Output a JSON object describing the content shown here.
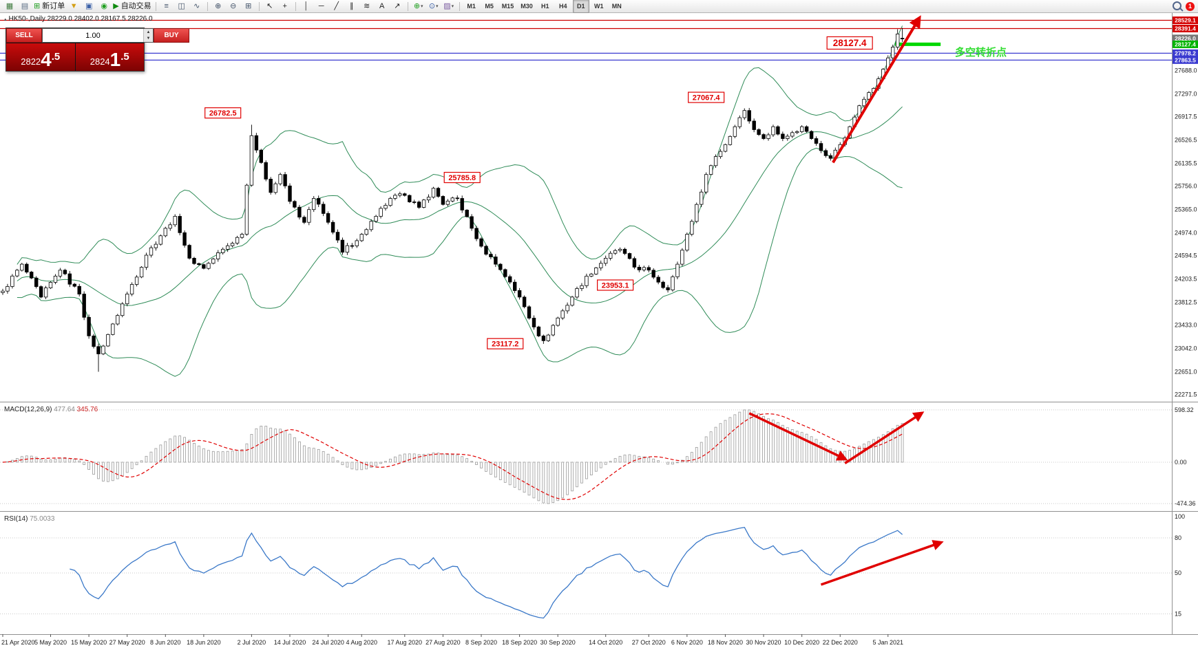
{
  "toolbar": {
    "items": [
      {
        "kind": "icon",
        "name": "new-chart-icon",
        "glyph": "▦",
        "color": "#3d7a3d"
      },
      {
        "kind": "icon",
        "name": "profiles-icon",
        "glyph": "▤",
        "color": "#5a6d84"
      },
      {
        "kind": "button",
        "name": "new-order-button",
        "glyph": "⊞",
        "color": "#1f9e1f",
        "label": "新订单"
      },
      {
        "kind": "icon",
        "name": "indicators-funnel-icon",
        "glyph": "▼",
        "color": "#d4a017"
      },
      {
        "kind": "icon",
        "name": "data-window-icon",
        "glyph": "▣",
        "color": "#3d62a8"
      },
      {
        "kind": "icon",
        "name": "strategy-tester-icon",
        "glyph": "◉",
        "color": "#1f9e1f"
      },
      {
        "kind": "button",
        "name": "autotrading-button",
        "glyph": "▶",
        "color": "#0e8a0e",
        "label": "自动交易"
      },
      {
        "kind": "sep"
      },
      {
        "kind": "icon",
        "name": "bar-chart-icon",
        "glyph": "≡",
        "color": "#44546a"
      },
      {
        "kind": "icon",
        "name": "candlestick-chart-icon",
        "glyph": "◫",
        "color": "#44546a"
      },
      {
        "kind": "icon",
        "name": "line-chart-icon",
        "glyph": "∿",
        "color": "#44546a"
      },
      {
        "kind": "sep"
      },
      {
        "kind": "icon",
        "name": "zoom-in-icon",
        "glyph": "⊕",
        "color": "#44546a"
      },
      {
        "kind": "icon",
        "name": "zoom-out-icon",
        "glyph": "⊖",
        "color": "#44546a"
      },
      {
        "kind": "icon",
        "name": "tile-windows-icon",
        "glyph": "⊞",
        "color": "#44546a"
      },
      {
        "kind": "sep"
      },
      {
        "kind": "icon",
        "name": "cursor-icon",
        "glyph": "↖",
        "color": "#222222"
      },
      {
        "kind": "icon",
        "name": "crosshair-icon",
        "glyph": "+",
        "color": "#222222"
      },
      {
        "kind": "sep"
      },
      {
        "kind": "icon",
        "name": "vertical-line-icon",
        "glyph": "│",
        "color": "#222222"
      },
      {
        "kind": "icon",
        "name": "horizontal-line-icon",
        "glyph": "─",
        "color": "#222222"
      },
      {
        "kind": "icon",
        "name": "trendline-icon",
        "glyph": "╱",
        "color": "#222222"
      },
      {
        "kind": "icon",
        "name": "equidistant-channel-icon",
        "glyph": "∥",
        "color": "#222222"
      },
      {
        "kind": "icon",
        "name": "fibonacci-icon",
        "glyph": "≋",
        "color": "#222222"
      },
      {
        "kind": "icon",
        "name": "text-label-icon",
        "glyph": "A",
        "color": "#222222"
      },
      {
        "kind": "icon",
        "name": "arrows-icon",
        "glyph": "↗",
        "color": "#222222"
      },
      {
        "kind": "sep"
      },
      {
        "kind": "icon",
        "name": "add-indicator-icon",
        "glyph": "⊕",
        "color": "#1f9e1f",
        "dropdown": true
      },
      {
        "kind": "icon",
        "name": "period-icon",
        "glyph": "⊙",
        "color": "#3d62a8",
        "dropdown": true
      },
      {
        "kind": "icon",
        "name": "template-icon",
        "glyph": "▨",
        "color": "#7a5aa0",
        "dropdown": true
      },
      {
        "kind": "sep"
      },
      {
        "kind": "tf",
        "name": "timeframe-m1-button",
        "label": "M1"
      },
      {
        "kind": "tf",
        "name": "timeframe-m5-button",
        "label": "M5"
      },
      {
        "kind": "tf",
        "name": "timeframe-m15-button",
        "label": "M15"
      },
      {
        "kind": "tf",
        "name": "timeframe-m30-button",
        "label": "M30"
      },
      {
        "kind": "tf",
        "name": "timeframe-h1-button",
        "label": "H1"
      },
      {
        "kind": "tf",
        "name": "timeframe-h4-button",
        "label": "H4"
      },
      {
        "kind": "tf",
        "name": "timeframe-d1-button",
        "label": "D1",
        "active": true
      },
      {
        "kind": "tf",
        "name": "timeframe-w1-button",
        "label": "W1"
      },
      {
        "kind": "tf",
        "name": "timeframe-mn-button",
        "label": "MN"
      }
    ],
    "notification_count": "1"
  },
  "header": {
    "marker": "▴",
    "text": "HK50-,Daily 28229.0 28402.0 28167.5 28226.0"
  },
  "trade_panel": {
    "sell_label": "SELL",
    "buy_label": "BUY",
    "volume": "1.00",
    "sell_price_main": "2822",
    "sell_price_big": "4",
    "sell_price_frac": ".5",
    "buy_price_main": "2824",
    "buy_price_big": "1",
    "buy_price_frac": ".5"
  },
  "chart_data": {
    "type": "candlestick",
    "symbol": "HK50-,Daily",
    "last_ohlc": {
      "open": 28229.0,
      "high": 28402.0,
      "low": 28167.5,
      "close": 28226.0
    },
    "days_total": 189,
    "price_min": 22150,
    "price_max": 28650,
    "close_anchors": [
      [
        0,
        24000
      ],
      [
        4,
        24450
      ],
      [
        8,
        23900
      ],
      [
        12,
        24350
      ],
      [
        16,
        23950
      ],
      [
        18,
        23250
      ],
      [
        20,
        22950
      ],
      [
        23,
        23450
      ],
      [
        26,
        23950
      ],
      [
        30,
        24600
      ],
      [
        34,
        25050
      ],
      [
        36,
        25250
      ],
      [
        39,
        24550
      ],
      [
        42,
        24380
      ],
      [
        46,
        24700
      ],
      [
        50,
        24950
      ],
      [
        52,
        26600
      ],
      [
        54,
        26150
      ],
      [
        56,
        25650
      ],
      [
        58,
        25950
      ],
      [
        60,
        25500
      ],
      [
        63,
        25150
      ],
      [
        65,
        25550
      ],
      [
        68,
        25150
      ],
      [
        71,
        24650
      ],
      [
        75,
        24950
      ],
      [
        78,
        25250
      ],
      [
        81,
        25550
      ],
      [
        84,
        25600
      ],
      [
        87,
        25400
      ],
      [
        90,
        25720
      ],
      [
        92,
        25450
      ],
      [
        95,
        25550
      ],
      [
        98,
        25050
      ],
      [
        100,
        24750
      ],
      [
        103,
        24450
      ],
      [
        106,
        24150
      ],
      [
        108,
        23900
      ],
      [
        111,
        23400
      ],
      [
        113,
        23170
      ],
      [
        116,
        23550
      ],
      [
        119,
        23900
      ],
      [
        122,
        24250
      ],
      [
        126,
        24550
      ],
      [
        129,
        24700
      ],
      [
        132,
        24400
      ],
      [
        135,
        24350
      ],
      [
        137,
        24150
      ],
      [
        139,
        24020
      ],
      [
        141,
        24450
      ],
      [
        143,
        24950
      ],
      [
        145,
        25450
      ],
      [
        147,
        25950
      ],
      [
        149,
        26250
      ],
      [
        151,
        26450
      ],
      [
        153,
        26750
      ],
      [
        155,
        27020
      ],
      [
        157,
        26700
      ],
      [
        159,
        26550
      ],
      [
        161,
        26750
      ],
      [
        163,
        26550
      ],
      [
        165,
        26650
      ],
      [
        167,
        26750
      ],
      [
        169,
        26550
      ],
      [
        171,
        26350
      ],
      [
        173,
        26220
      ],
      [
        175,
        26450
      ],
      [
        177,
        26750
      ],
      [
        179,
        27100
      ],
      [
        181,
        27320
      ],
      [
        183,
        27550
      ],
      [
        185,
        27900
      ],
      [
        186,
        28080
      ],
      [
        187,
        28300
      ],
      [
        188,
        28226
      ]
    ],
    "overrides": {
      "20": {
        "low": 22651.0
      },
      "52": {
        "high": 26782.5
      },
      "113": {
        "low": 23117.2
      },
      "187": {
        "high": 28380.0
      },
      "188": {
        "open": 28229.0,
        "high": 28402.0,
        "low": 28167.5,
        "close": 28226.0
      }
    },
    "bollinger_period": 20,
    "band_color": "#2e8b57",
    "hlines": [
      {
        "price": 28529.1,
        "color": "#cc0000"
      },
      {
        "price": 28391.4,
        "color": "#cc0000"
      },
      {
        "price": 27978.2,
        "color": "#3a3ad0"
      },
      {
        "price": 27863.5,
        "color": "#3a3ad0"
      }
    ],
    "green_level": {
      "price": 28127.4,
      "day_from": 186.5,
      "day_to": 196,
      "color": "#00d800"
    },
    "annotations": [
      {
        "text": "26782.5",
        "day": 46,
        "price": 26980
      },
      {
        "text": "25785.8",
        "day": 96,
        "price": 25900
      },
      {
        "text": "23117.2",
        "day": 105,
        "price": 23120
      },
      {
        "text": "23953.1",
        "day": 128,
        "price": 24100
      },
      {
        "text": "27067.4",
        "day": 147,
        "price": 27240
      },
      {
        "text": "28127.4",
        "day": 177,
        "price": 28150,
        "big": true
      }
    ],
    "trend_label": {
      "text": "多空转折点",
      "color": "#33dd33",
      "fx": 0.815,
      "price": 27940
    },
    "main_arrow": {
      "from_day": 173.5,
      "from_price": 26150,
      "to_day": 191.5,
      "to_price": 28560
    },
    "macd": {
      "label": "MACD(12,26,9)",
      "value_main": "477.64",
      "value_signal": "345.76",
      "axis_max_label": "598.32",
      "axis_zero_label": "0.00",
      "axis_min_label": "-474.36",
      "hist_color": "#9a9a9a",
      "signal_color": "#e00000",
      "arrows": [
        {
          "from_day": 156,
          "from_fy": 0.1,
          "to_day": 176,
          "to_fy": 0.52
        },
        {
          "from_day": 176,
          "from_fy": 0.56,
          "to_day": 192,
          "to_fy": 0.1
        }
      ]
    },
    "rsi": {
      "label": "RSI(14)",
      "value": "75.0033",
      "line_color": "#3a78c8",
      "axis_top_label": "100",
      "levels": [
        80,
        50,
        15
      ],
      "arrow": {
        "from_day": 171,
        "from_value": 40,
        "to_day": 196,
        "to_value": 76
      }
    },
    "price_axis": {
      "badges": [
        {
          "label": "28529.1",
          "price": 28529.1,
          "bg": "#d40000"
        },
        {
          "label": "28391.4",
          "price": 28391.4,
          "bg": "#d40000"
        },
        {
          "label": "28226.0",
          "price": 28226.0,
          "bg": "#777777"
        },
        {
          "label": "28127.4",
          "price": 28127.4,
          "bg": "#00b300"
        },
        {
          "label": "27978.2",
          "price": 27978.2,
          "bg": "#3a3ad0"
        },
        {
          "label": "27863.5",
          "price": 27863.5,
          "bg": "#3a3ad0"
        }
      ],
      "ticks": [
        27688.0,
        27297.0,
        26917.5,
        26526.5,
        26135.5,
        25756.0,
        25365.0,
        24974.0,
        24594.5,
        24203.5,
        23812.5,
        23433.0,
        23042.0,
        22651.0,
        22271.5
      ]
    },
    "time_axis": [
      {
        "label": "21 Apr 2020",
        "day": 0
      },
      {
        "label": "5 May 2020",
        "day": 10
      },
      {
        "label": "15 May 2020",
        "day": 18
      },
      {
        "label": "27 May 2020",
        "day": 26
      },
      {
        "label": "8 Jun 2020",
        "day": 34
      },
      {
        "label": "18 Jun 2020",
        "day": 42
      },
      {
        "label": "2 Jul 2020",
        "day": 52
      },
      {
        "label": "14 Jul 2020",
        "day": 60
      },
      {
        "label": "24 Jul 2020",
        "day": 68
      },
      {
        "label": "4 Aug 2020",
        "day": 75
      },
      {
        "label": "17 Aug 2020",
        "day": 84
      },
      {
        "label": "27 Aug 2020",
        "day": 92
      },
      {
        "label": "8 Sep 2020",
        "day": 100
      },
      {
        "label": "18 Sep 2020",
        "day": 108
      },
      {
        "label": "30 Sep 2020",
        "day": 116
      },
      {
        "label": "14 Oct 2020",
        "day": 126
      },
      {
        "label": "27 Oct 2020",
        "day": 135
      },
      {
        "label": "6 Nov 2020",
        "day": 143
      },
      {
        "label": "18 Nov 2020",
        "day": 151
      },
      {
        "label": "30 Nov 2020",
        "day": 159
      },
      {
        "label": "10 Dec 2020",
        "day": 167
      },
      {
        "label": "22 Dec 2020",
        "day": 175
      },
      {
        "label": "5 Jan 2021",
        "day": 185
      }
    ]
  }
}
